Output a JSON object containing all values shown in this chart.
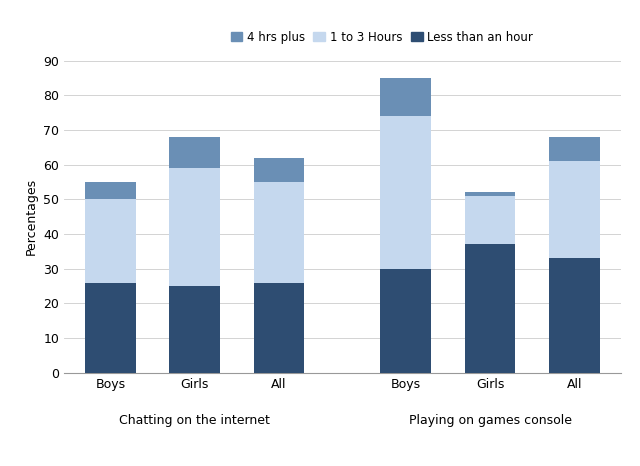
{
  "groups": [
    "Boys",
    "Girls",
    "All",
    "Boys",
    "Girls",
    "All"
  ],
  "category_labels": [
    "Chatting on the internet",
    "Playing on games console"
  ],
  "less_than_hour": [
    26,
    25,
    26,
    30,
    37,
    33
  ],
  "one_to_three": [
    24,
    34,
    29,
    44,
    14,
    28
  ],
  "four_plus": [
    5,
    9,
    7,
    11,
    1,
    7
  ],
  "color_less_than_hour": "#2E4D72",
  "color_one_to_three": "#C5D8EE",
  "color_four_plus": "#6A8FB5",
  "ylabel": "Percentages",
  "ylim": [
    0,
    90
  ],
  "yticks": [
    0,
    10,
    20,
    30,
    40,
    50,
    60,
    70,
    80,
    90
  ],
  "legend_labels": [
    "4 hrs plus",
    "1 to 3 Hours",
    "Less than an hour"
  ],
  "bar_width": 0.6,
  "x_positions": [
    0,
    1,
    2,
    3.5,
    4.5,
    5.5
  ]
}
